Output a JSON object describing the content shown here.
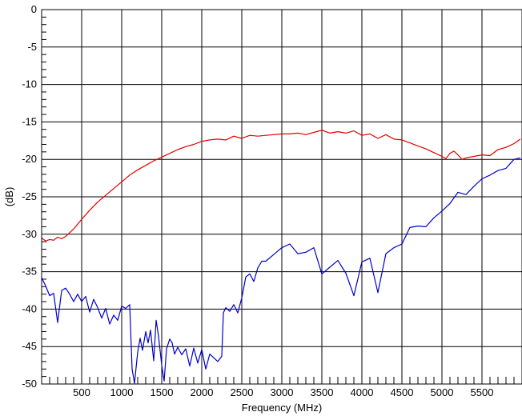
{
  "chart_data": {
    "type": "line",
    "title": "",
    "xlabel": "Frequency (MHz)",
    "ylabel": "(dB)",
    "xlim": [
      0,
      6000
    ],
    "ylim": [
      -50,
      0
    ],
    "grid": true,
    "legend": "none",
    "x_ticks": [
      500,
      1000,
      1500,
      2000,
      2500,
      3000,
      3500,
      4000,
      4500,
      5000,
      5500
    ],
    "x_tick_labels": [
      "500",
      "1000",
      "1500",
      "2000",
      "2500",
      "3000",
      "3500",
      "4000",
      "4500",
      "5000",
      "5500"
    ],
    "y_ticks": [
      0,
      -5,
      -10,
      -15,
      -20,
      -25,
      -30,
      -35,
      -40,
      -45,
      -50
    ],
    "y_tick_labels": [
      "0",
      "-5",
      "-10",
      "-15",
      "-20",
      "-25",
      "-30",
      "-35",
      "-40",
      "-45",
      "-50"
    ],
    "series": [
      {
        "color": "#e00000",
        "x": [
          0,
          50,
          100,
          150,
          200,
          250,
          300,
          400,
          500,
          600,
          700,
          800,
          900,
          1000,
          1100,
          1200,
          1300,
          1400,
          1500,
          1600,
          1700,
          1800,
          1900,
          2000,
          2100,
          2200,
          2300,
          2400,
          2500,
          2600,
          2700,
          2800,
          2900,
          3000,
          3100,
          3200,
          3300,
          3400,
          3500,
          3600,
          3700,
          3800,
          3900,
          4000,
          4100,
          4200,
          4300,
          4400,
          4500,
          4600,
          4700,
          4800,
          4900,
          5000,
          5050,
          5100,
          5150,
          5200,
          5250,
          5300,
          5400,
          5500,
          5600,
          5700,
          5800,
          5900,
          5980
        ],
        "y": [
          -30.5,
          -30.9,
          -30.7,
          -30.8,
          -30.4,
          -30.6,
          -30.3,
          -29.3,
          -28.0,
          -26.8,
          -25.7,
          -24.8,
          -23.9,
          -23.0,
          -22.1,
          -21.4,
          -20.8,
          -20.2,
          -19.7,
          -19.2,
          -18.7,
          -18.3,
          -18.0,
          -17.6,
          -17.4,
          -17.3,
          -17.4,
          -16.9,
          -17.2,
          -16.8,
          -16.9,
          -16.8,
          -16.7,
          -16.6,
          -16.6,
          -16.5,
          -16.7,
          -16.4,
          -16.1,
          -16.5,
          -16.3,
          -16.5,
          -16.2,
          -16.8,
          -16.6,
          -17.2,
          -16.7,
          -17.3,
          -17.4,
          -17.8,
          -18.2,
          -18.6,
          -19.1,
          -19.6,
          -19.9,
          -19.2,
          -18.9,
          -19.4,
          -20.0,
          -19.8,
          -19.6,
          -19.4,
          -19.5,
          -18.7,
          -18.4,
          -17.9,
          -17.3
        ]
      },
      {
        "color": "#0000cc",
        "x": [
          0,
          50,
          100,
          150,
          200,
          250,
          300,
          350,
          400,
          450,
          500,
          550,
          600,
          650,
          700,
          750,
          800,
          850,
          900,
          950,
          1000,
          1050,
          1100,
          1130,
          1160,
          1200,
          1230,
          1260,
          1300,
          1330,
          1360,
          1400,
          1430,
          1460,
          1500,
          1530,
          1560,
          1600,
          1630,
          1660,
          1700,
          1750,
          1800,
          1850,
          1900,
          1950,
          2000,
          2050,
          2100,
          2150,
          2200,
          2250,
          2270,
          2300,
          2350,
          2400,
          2450,
          2500,
          2550,
          2600,
          2650,
          2700,
          2750,
          2800,
          2900,
          3000,
          3100,
          3200,
          3300,
          3400,
          3500,
          3600,
          3700,
          3800,
          3900,
          4000,
          4100,
          4200,
          4300,
          4400,
          4500,
          4600,
          4700,
          4800,
          4900,
          5000,
          5100,
          5200,
          5300,
          5400,
          5500,
          5600,
          5700,
          5800,
          5900,
          5980
        ],
        "y": [
          -35.8,
          -36.9,
          -38.2,
          -37.9,
          -41.8,
          -37.5,
          -37.2,
          -38.0,
          -39.0,
          -38.0,
          -39.0,
          -38.3,
          -40.4,
          -38.7,
          -39.8,
          -41.2,
          -39.9,
          -42.0,
          -40.8,
          -41.5,
          -39.6,
          -39.9,
          -39.4,
          -48.0,
          -49.9,
          -45.7,
          -43.9,
          -45.5,
          -43.0,
          -44.5,
          -42.8,
          -46.9,
          -41.5,
          -43.6,
          -47.5,
          -49.6,
          -45.3,
          -44.0,
          -44.5,
          -46.0,
          -45.1,
          -46.1,
          -45.3,
          -47.6,
          -45.2,
          -47.2,
          -45.4,
          -48.0,
          -46.0,
          -46.5,
          -47.0,
          -46.3,
          -40.5,
          -39.8,
          -40.3,
          -39.4,
          -40.5,
          -38.5,
          -35.7,
          -35.3,
          -36.3,
          -34.5,
          -33.6,
          -33.6,
          -32.7,
          -31.8,
          -31.3,
          -32.6,
          -32.4,
          -31.8,
          -35.3,
          -34.4,
          -33.5,
          -35.2,
          -38.2,
          -33.7,
          -33.2,
          -37.8,
          -32.6,
          -31.8,
          -31.3,
          -29.1,
          -28.9,
          -29.0,
          -27.8,
          -26.9,
          -25.9,
          -24.4,
          -24.7,
          -23.6,
          -22.6,
          -22.1,
          -21.5,
          -21.2,
          -20.0,
          -19.8
        ]
      }
    ]
  }
}
